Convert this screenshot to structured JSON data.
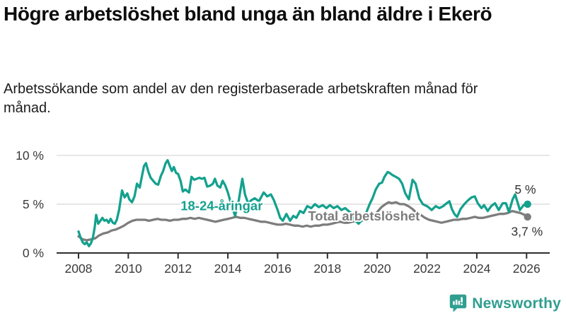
{
  "chart_data": {
    "type": "line",
    "title": "Högre arbetslöshet bland unga än bland äldre i Ekerö",
    "subtitle": "Arbetssökande som andel av den registerbaserade arbetskraften månad för månad.",
    "unit": "%",
    "grid": "horizontal-only",
    "legend_position": "inline-labels-on-chart",
    "x_axis": {
      "range": [
        2007.12,
        2026.93
      ],
      "ticks": [
        {
          "value": 2008,
          "label": "2008"
        },
        {
          "value": 2010,
          "label": "2010"
        },
        {
          "value": 2012,
          "label": "2012"
        },
        {
          "value": 2014,
          "label": "2014"
        },
        {
          "value": 2016,
          "label": "2016"
        },
        {
          "value": 2018,
          "label": "2018"
        },
        {
          "value": 2020,
          "label": "2020"
        },
        {
          "value": 2022,
          "label": "2022"
        },
        {
          "value": 2024,
          "label": "2024"
        },
        {
          "value": 2026,
          "label": "2026"
        }
      ]
    },
    "y_axis": {
      "range": [
        0,
        11.8
      ],
      "ticks": [
        {
          "value": 0,
          "label": "0 %"
        },
        {
          "value": 5,
          "label": "5 %"
        },
        {
          "value": 10,
          "label": "10 %"
        }
      ],
      "gridline_values": [
        5,
        10
      ],
      "gridline_color": "#d9d9d9",
      "axis_color": "#2e2e2e"
    },
    "series": [
      {
        "id": "total",
        "name": "Total arbetslöshet",
        "color": "#7d7d7d",
        "end_dot": true,
        "label": {
          "text": "Total arbetslöshet",
          "year": 2017.22,
          "value": 3.8
        },
        "end_label": {
          "text": "3,7 %",
          "year": 2025.38,
          "value": 2.2
        },
        "points": [
          [
            2008.0,
            1.7
          ],
          [
            2008.17,
            1.4
          ],
          [
            2008.33,
            1.3
          ],
          [
            2008.5,
            1.4
          ],
          [
            2008.67,
            1.5
          ],
          [
            2008.83,
            1.8
          ],
          [
            2009.0,
            2.0
          ],
          [
            2009.17,
            2.1
          ],
          [
            2009.33,
            2.3
          ],
          [
            2009.5,
            2.4
          ],
          [
            2009.67,
            2.6
          ],
          [
            2009.83,
            2.8
          ],
          [
            2010.0,
            3.1
          ],
          [
            2010.17,
            3.3
          ],
          [
            2010.33,
            3.4
          ],
          [
            2010.5,
            3.4
          ],
          [
            2010.67,
            3.4
          ],
          [
            2010.83,
            3.3
          ],
          [
            2011.0,
            3.4
          ],
          [
            2011.17,
            3.5
          ],
          [
            2011.33,
            3.4
          ],
          [
            2011.5,
            3.4
          ],
          [
            2011.67,
            3.3
          ],
          [
            2011.83,
            3.4
          ],
          [
            2012.0,
            3.4
          ],
          [
            2012.17,
            3.5
          ],
          [
            2012.33,
            3.5
          ],
          [
            2012.5,
            3.6
          ],
          [
            2012.67,
            3.5
          ],
          [
            2012.83,
            3.6
          ],
          [
            2013.0,
            3.5
          ],
          [
            2013.17,
            3.4
          ],
          [
            2013.33,
            3.3
          ],
          [
            2013.5,
            3.2
          ],
          [
            2013.67,
            3.3
          ],
          [
            2013.83,
            3.4
          ],
          [
            2014.0,
            3.5
          ],
          [
            2014.17,
            3.6
          ],
          [
            2014.33,
            3.7
          ],
          [
            2014.5,
            3.6
          ],
          [
            2014.67,
            3.6
          ],
          [
            2014.83,
            3.5
          ],
          [
            2015.0,
            3.4
          ],
          [
            2015.17,
            3.3
          ],
          [
            2015.33,
            3.2
          ],
          [
            2015.5,
            3.2
          ],
          [
            2015.67,
            3.1
          ],
          [
            2015.83,
            3.0
          ],
          [
            2016.0,
            2.9
          ],
          [
            2016.17,
            2.9
          ],
          [
            2016.33,
            3.0
          ],
          [
            2016.5,
            2.9
          ],
          [
            2016.67,
            2.8
          ],
          [
            2016.83,
            2.8
          ],
          [
            2017.0,
            2.7
          ],
          [
            2017.17,
            2.8
          ],
          [
            2017.33,
            2.7
          ],
          [
            2017.5,
            2.8
          ],
          [
            2017.67,
            2.8
          ],
          [
            2017.83,
            2.9
          ],
          [
            2018.0,
            2.9
          ],
          [
            2018.17,
            3.0
          ],
          [
            2018.33,
            3.1
          ],
          [
            2018.5,
            3.2
          ],
          [
            2018.67,
            3.1
          ],
          [
            2018.83,
            3.1
          ],
          [
            2019.0,
            3.2
          ],
          [
            2019.17,
            3.3
          ],
          [
            2019.33,
            3.3
          ],
          [
            2019.5,
            3.4
          ],
          [
            2019.67,
            3.5
          ],
          [
            2019.83,
            3.6
          ],
          [
            2020.0,
            4.2
          ],
          [
            2020.17,
            4.7
          ],
          [
            2020.33,
            5.0
          ],
          [
            2020.46,
            5.2
          ],
          [
            2020.58,
            5.1
          ],
          [
            2020.75,
            5.2
          ],
          [
            2020.92,
            5.0
          ],
          [
            2021.08,
            5.0
          ],
          [
            2021.25,
            4.8
          ],
          [
            2021.42,
            4.5
          ],
          [
            2021.58,
            4.1
          ],
          [
            2021.75,
            3.9
          ],
          [
            2021.92,
            3.6
          ],
          [
            2022.08,
            3.4
          ],
          [
            2022.25,
            3.3
          ],
          [
            2022.42,
            3.2
          ],
          [
            2022.58,
            3.1
          ],
          [
            2022.75,
            3.2
          ],
          [
            2022.92,
            3.3
          ],
          [
            2023.08,
            3.4
          ],
          [
            2023.25,
            3.4
          ],
          [
            2023.42,
            3.5
          ],
          [
            2023.58,
            3.5
          ],
          [
            2023.75,
            3.6
          ],
          [
            2023.92,
            3.7
          ],
          [
            2024.08,
            3.6
          ],
          [
            2024.25,
            3.6
          ],
          [
            2024.42,
            3.7
          ],
          [
            2024.58,
            3.8
          ],
          [
            2024.75,
            3.9
          ],
          [
            2024.92,
            4.0
          ],
          [
            2025.08,
            4.0
          ],
          [
            2025.25,
            4.1
          ],
          [
            2025.42,
            4.3
          ],
          [
            2025.58,
            4.2
          ],
          [
            2025.75,
            4.1
          ],
          [
            2025.92,
            3.9
          ],
          [
            2026.04,
            3.7
          ]
        ]
      },
      {
        "id": "youth",
        "name": "18-24-åringar",
        "color": "#14a18e",
        "end_dot": true,
        "label": {
          "text": "18-24-åringar",
          "year": 2012.1,
          "value": 4.85
        },
        "end_label": {
          "text": "5 %",
          "year": 2025.52,
          "value": 6.5
        },
        "points": [
          [
            2008.0,
            2.2
          ],
          [
            2008.08,
            1.6
          ],
          [
            2008.17,
            1.1
          ],
          [
            2008.25,
            0.9
          ],
          [
            2008.33,
            1.1
          ],
          [
            2008.42,
            0.7
          ],
          [
            2008.5,
            1.0
          ],
          [
            2008.58,
            1.6
          ],
          [
            2008.65,
            2.6
          ],
          [
            2008.71,
            3.9
          ],
          [
            2008.79,
            3.0
          ],
          [
            2008.88,
            3.3
          ],
          [
            2008.96,
            3.6
          ],
          [
            2009.04,
            3.3
          ],
          [
            2009.13,
            3.4
          ],
          [
            2009.21,
            3.1
          ],
          [
            2009.29,
            3.5
          ],
          [
            2009.38,
            3.1
          ],
          [
            2009.46,
            3.0
          ],
          [
            2009.54,
            3.4
          ],
          [
            2009.63,
            4.4
          ],
          [
            2009.75,
            6.4
          ],
          [
            2009.85,
            5.7
          ],
          [
            2009.96,
            6.1
          ],
          [
            2010.04,
            5.5
          ],
          [
            2010.15,
            5.2
          ],
          [
            2010.25,
            5.8
          ],
          [
            2010.35,
            7.1
          ],
          [
            2010.46,
            6.7
          ],
          [
            2010.55,
            7.9
          ],
          [
            2010.63,
            8.9
          ],
          [
            2010.71,
            9.2
          ],
          [
            2010.81,
            8.3
          ],
          [
            2010.9,
            7.7
          ],
          [
            2011.0,
            7.4
          ],
          [
            2011.1,
            7.1
          ],
          [
            2011.2,
            7.0
          ],
          [
            2011.31,
            7.9
          ],
          [
            2011.4,
            8.4
          ],
          [
            2011.5,
            9.2
          ],
          [
            2011.58,
            9.5
          ],
          [
            2011.67,
            8.9
          ],
          [
            2011.75,
            8.4
          ],
          [
            2011.83,
            8.8
          ],
          [
            2011.92,
            8.2
          ],
          [
            2012.0,
            8.1
          ],
          [
            2012.1,
            7.4
          ],
          [
            2012.19,
            6.3
          ],
          [
            2012.29,
            6.5
          ],
          [
            2012.44,
            6.2
          ],
          [
            2012.54,
            7.8
          ],
          [
            2012.65,
            7.5
          ],
          [
            2012.75,
            7.6
          ],
          [
            2012.85,
            7.7
          ],
          [
            2012.96,
            7.6
          ],
          [
            2013.06,
            7.7
          ],
          [
            2013.17,
            6.8
          ],
          [
            2013.29,
            6.9
          ],
          [
            2013.4,
            7.1
          ],
          [
            2013.48,
            7.6
          ],
          [
            2013.58,
            6.9
          ],
          [
            2013.69,
            6.7
          ],
          [
            2013.79,
            7.4
          ],
          [
            2013.9,
            6.9
          ],
          [
            2014.0,
            6.2
          ],
          [
            2014.1,
            5.3
          ],
          [
            2014.21,
            4.4
          ],
          [
            2014.29,
            3.8
          ],
          [
            2014.44,
            5.4
          ],
          [
            2014.58,
            7.6
          ],
          [
            2014.69,
            6.0
          ],
          [
            2014.81,
            5.1
          ],
          [
            2014.94,
            5.4
          ],
          [
            2015.08,
            5.6
          ],
          [
            2015.25,
            5.3
          ],
          [
            2015.44,
            6.2
          ],
          [
            2015.58,
            5.8
          ],
          [
            2015.73,
            6.0
          ],
          [
            2015.85,
            5.4
          ],
          [
            2016.0,
            4.4
          ],
          [
            2016.1,
            3.6
          ],
          [
            2016.21,
            3.3
          ],
          [
            2016.35,
            4.0
          ],
          [
            2016.5,
            3.3
          ],
          [
            2016.63,
            3.8
          ],
          [
            2016.75,
            3.6
          ],
          [
            2016.9,
            4.3
          ],
          [
            2017.04,
            4.1
          ],
          [
            2017.19,
            4.8
          ],
          [
            2017.35,
            4.6
          ],
          [
            2017.5,
            5.0
          ],
          [
            2017.65,
            4.7
          ],
          [
            2017.81,
            4.9
          ],
          [
            2017.96,
            4.6
          ],
          [
            2018.1,
            4.9
          ],
          [
            2018.25,
            4.6
          ],
          [
            2018.4,
            4.8
          ],
          [
            2018.56,
            4.4
          ],
          [
            2018.71,
            4.6
          ],
          [
            2018.85,
            4.3
          ],
          [
            2019.0,
            4.0
          ],
          [
            2019.1,
            3.4
          ],
          [
            2019.25,
            3.0
          ],
          [
            2019.4,
            3.4
          ],
          [
            2019.5,
            3.7
          ],
          [
            2019.6,
            4.4
          ],
          [
            2019.71,
            5.1
          ],
          [
            2019.81,
            5.6
          ],
          [
            2019.94,
            6.5
          ],
          [
            2020.08,
            7.1
          ],
          [
            2020.19,
            7.2
          ],
          [
            2020.29,
            7.8
          ],
          [
            2020.42,
            8.3
          ],
          [
            2020.5,
            8.2
          ],
          [
            2020.6,
            8.0
          ],
          [
            2020.75,
            7.8
          ],
          [
            2020.88,
            7.6
          ],
          [
            2021.0,
            7.1
          ],
          [
            2021.13,
            6.1
          ],
          [
            2021.27,
            5.5
          ],
          [
            2021.42,
            7.5
          ],
          [
            2021.54,
            7.1
          ],
          [
            2021.69,
            5.6
          ],
          [
            2021.83,
            5.0
          ],
          [
            2022.0,
            4.8
          ],
          [
            2022.1,
            4.6
          ],
          [
            2022.19,
            4.4
          ],
          [
            2022.35,
            4.8
          ],
          [
            2022.5,
            4.6
          ],
          [
            2022.65,
            4.8
          ],
          [
            2022.79,
            5.1
          ],
          [
            2022.9,
            5.3
          ],
          [
            2023.0,
            4.5
          ],
          [
            2023.1,
            4.0
          ],
          [
            2023.21,
            3.7
          ],
          [
            2023.35,
            4.5
          ],
          [
            2023.5,
            5.0
          ],
          [
            2023.65,
            5.4
          ],
          [
            2023.79,
            5.7
          ],
          [
            2023.92,
            5.8
          ],
          [
            2024.04,
            5.1
          ],
          [
            2024.19,
            4.6
          ],
          [
            2024.29,
            4.9
          ],
          [
            2024.44,
            4.3
          ],
          [
            2024.58,
            4.8
          ],
          [
            2024.73,
            5.1
          ],
          [
            2024.88,
            4.4
          ],
          [
            2025.04,
            5.1
          ],
          [
            2025.17,
            5.1
          ],
          [
            2025.29,
            4.2
          ],
          [
            2025.44,
            5.5
          ],
          [
            2025.54,
            6.0
          ],
          [
            2025.73,
            4.4
          ],
          [
            2025.88,
            4.9
          ],
          [
            2026.04,
            5.0
          ]
        ]
      }
    ]
  },
  "footer": {
    "brand": "Newsworthy",
    "brand_color": "#2f9e90",
    "logo_icon": "bar-chart-speech-bubble-icon"
  }
}
